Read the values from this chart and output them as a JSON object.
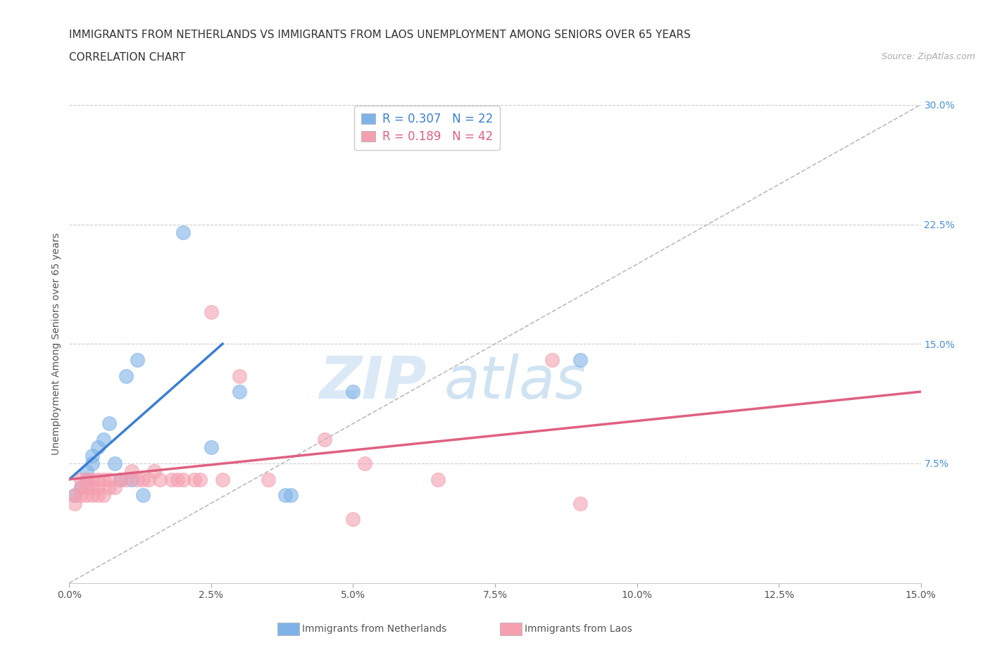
{
  "title_line1": "IMMIGRANTS FROM NETHERLANDS VS IMMIGRANTS FROM LAOS UNEMPLOYMENT AMONG SENIORS OVER 65 YEARS",
  "title_line2": "CORRELATION CHART",
  "source_text": "Source: ZipAtlas.com",
  "ylabel": "Unemployment Among Seniors over 65 years",
  "xlim": [
    0.0,
    0.15
  ],
  "ylim": [
    0.0,
    0.3
  ],
  "xticks": [
    0.0,
    0.025,
    0.05,
    0.075,
    0.1,
    0.125,
    0.15
  ],
  "xtick_labels": [
    "0.0%",
    "2.5%",
    "5.0%",
    "7.5%",
    "10.0%",
    "12.5%",
    "15.0%"
  ],
  "yticks_right": [
    0.075,
    0.15,
    0.225,
    0.3
  ],
  "ytick_labels_right": [
    "7.5%",
    "15.0%",
    "22.5%",
    "30.0%"
  ],
  "netherlands_color": "#7fb3e8",
  "laos_color": "#f4a0b0",
  "netherlands_R": 0.307,
  "netherlands_N": 22,
  "laos_R": 0.189,
  "laos_N": 42,
  "netherlands_scatter": [
    [
      0.001,
      0.055
    ],
    [
      0.002,
      0.06
    ],
    [
      0.003,
      0.065
    ],
    [
      0.003,
      0.07
    ],
    [
      0.004,
      0.075
    ],
    [
      0.004,
      0.08
    ],
    [
      0.005,
      0.085
    ],
    [
      0.006,
      0.09
    ],
    [
      0.007,
      0.1
    ],
    [
      0.008,
      0.075
    ],
    [
      0.009,
      0.065
    ],
    [
      0.01,
      0.13
    ],
    [
      0.011,
      0.065
    ],
    [
      0.012,
      0.14
    ],
    [
      0.013,
      0.055
    ],
    [
      0.02,
      0.22
    ],
    [
      0.025,
      0.085
    ],
    [
      0.03,
      0.12
    ],
    [
      0.038,
      0.055
    ],
    [
      0.039,
      0.055
    ],
    [
      0.05,
      0.12
    ],
    [
      0.09,
      0.14
    ]
  ],
  "laos_scatter": [
    [
      0.001,
      0.05
    ],
    [
      0.001,
      0.055
    ],
    [
      0.002,
      0.055
    ],
    [
      0.002,
      0.06
    ],
    [
      0.002,
      0.065
    ],
    [
      0.003,
      0.055
    ],
    [
      0.003,
      0.06
    ],
    [
      0.003,
      0.065
    ],
    [
      0.004,
      0.055
    ],
    [
      0.004,
      0.06
    ],
    [
      0.004,
      0.065
    ],
    [
      0.005,
      0.055
    ],
    [
      0.005,
      0.06
    ],
    [
      0.005,
      0.065
    ],
    [
      0.006,
      0.055
    ],
    [
      0.006,
      0.065
    ],
    [
      0.007,
      0.06
    ],
    [
      0.007,
      0.065
    ],
    [
      0.008,
      0.06
    ],
    [
      0.009,
      0.065
    ],
    [
      0.01,
      0.065
    ],
    [
      0.011,
      0.07
    ],
    [
      0.012,
      0.065
    ],
    [
      0.013,
      0.065
    ],
    [
      0.014,
      0.065
    ],
    [
      0.015,
      0.07
    ],
    [
      0.016,
      0.065
    ],
    [
      0.018,
      0.065
    ],
    [
      0.019,
      0.065
    ],
    [
      0.02,
      0.065
    ],
    [
      0.022,
      0.065
    ],
    [
      0.023,
      0.065
    ],
    [
      0.025,
      0.17
    ],
    [
      0.027,
      0.065
    ],
    [
      0.03,
      0.13
    ],
    [
      0.035,
      0.065
    ],
    [
      0.045,
      0.09
    ],
    [
      0.05,
      0.04
    ],
    [
      0.052,
      0.075
    ],
    [
      0.065,
      0.065
    ],
    [
      0.085,
      0.14
    ],
    [
      0.09,
      0.05
    ]
  ],
  "netherlands_line_x": [
    0.0,
    0.027
  ],
  "netherlands_line_y": [
    0.065,
    0.15
  ],
  "laos_line_x": [
    0.0,
    0.15
  ],
  "laos_line_y": [
    0.065,
    0.12
  ],
  "ref_line_x": [
    0.0,
    0.15
  ],
  "ref_line_y": [
    0.0,
    0.3
  ],
  "watermark_top": "ZIP",
  "watermark_bottom": "atlas",
  "background_color": "#ffffff",
  "title_fontsize": 11,
  "axis_label_fontsize": 10,
  "tick_fontsize": 10,
  "legend_fontsize": 12
}
